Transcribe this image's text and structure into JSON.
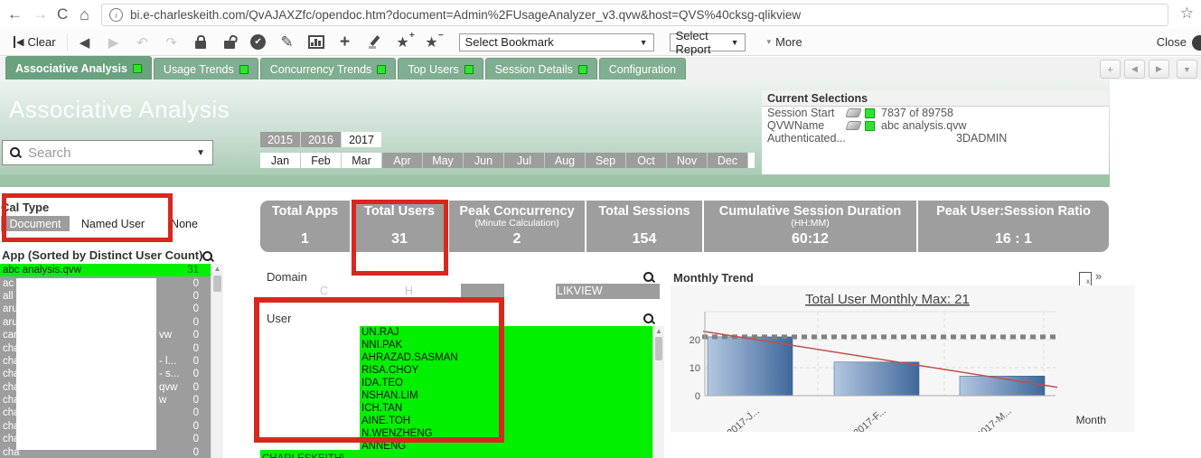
{
  "browser": {
    "url": "bi.e-charleskeith.com/QvAJAXZfc/opendoc.htm?document=Admin%2FUsageAnalyzer_v3.qvw&host=QVS%40cksg-qlikview"
  },
  "qv_toolbar": {
    "clear_label": "Clear",
    "bookmark_placeholder": "Select Bookmark",
    "report_label": "Select Report",
    "more_label": "More",
    "close_label": "Close"
  },
  "tab_bar": {
    "tabs": [
      {
        "label": "Associative Analysis",
        "indicator": true,
        "active": true
      },
      {
        "label": "Usage Trends",
        "indicator": true,
        "active": false
      },
      {
        "label": "Concurrency Trends",
        "indicator": true,
        "active": false
      },
      {
        "label": "Top Users",
        "indicator": true,
        "active": false
      },
      {
        "label": "Session Details",
        "indicator": true,
        "active": false
      },
      {
        "label": "Configuration",
        "indicator": false,
        "active": false
      }
    ]
  },
  "header": {
    "title": "Associative Analysis",
    "search_placeholder": "Search"
  },
  "current_selections": {
    "title": "Current Selections",
    "rows": [
      {
        "field": "Session Start",
        "value": "7837 of 89758",
        "icons": true,
        "far": false
      },
      {
        "field": "QVWName",
        "value": "abc analysis.qvw",
        "icons": true,
        "far": false
      },
      {
        "field": "Authenticated...",
        "value": "3DADMIN",
        "icons": false,
        "far": true
      }
    ]
  },
  "filters": {
    "years": [
      {
        "label": "2015",
        "selected": false
      },
      {
        "label": "2016",
        "selected": false
      },
      {
        "label": "2017",
        "selected": true
      }
    ],
    "months": [
      {
        "label": "Jan",
        "selected": true
      },
      {
        "label": "Feb",
        "selected": true
      },
      {
        "label": "Mar",
        "selected": true
      },
      {
        "label": "Apr",
        "selected": false
      },
      {
        "label": "May",
        "selected": false
      },
      {
        "label": "Jun",
        "selected": false
      },
      {
        "label": "Jul",
        "selected": false
      },
      {
        "label": "Aug",
        "selected": false
      },
      {
        "label": "Sep",
        "selected": false
      },
      {
        "label": "Oct",
        "selected": false
      },
      {
        "label": "Nov",
        "selected": false
      },
      {
        "label": "Dec",
        "selected": false
      }
    ]
  },
  "cal_type": {
    "label": "Cal Type",
    "options": [
      {
        "label": "Document",
        "selected": true
      },
      {
        "label": "Named User",
        "selected": false
      },
      {
        "label": "None",
        "selected": false
      }
    ]
  },
  "app_list": {
    "title": "App (Sorted by Distinct User Count)",
    "rows": [
      {
        "name": "abc analysis.qvw",
        "suffix": "",
        "count": "31",
        "selected": true
      },
      {
        "name": "ac",
        "suffix": "",
        "count": "0",
        "selected": false
      },
      {
        "name": "all",
        "suffix": "",
        "count": "0",
        "selected": false
      },
      {
        "name": "aru",
        "suffix": "",
        "count": "0",
        "selected": false
      },
      {
        "name": "aru",
        "suffix": "",
        "count": "0",
        "selected": false
      },
      {
        "name": "car",
        "suffix": "vw",
        "count": "0",
        "selected": false
      },
      {
        "name": "cha",
        "suffix": "",
        "count": "0",
        "selected": false
      },
      {
        "name": "cha",
        "suffix": "- l...",
        "count": "0",
        "selected": false
      },
      {
        "name": "cha",
        "suffix": "- s...",
        "count": "0",
        "selected": false
      },
      {
        "name": "cha",
        "suffix": "qvw",
        "count": "0",
        "selected": false
      },
      {
        "name": "cha",
        "suffix": "w",
        "count": "0",
        "selected": false
      },
      {
        "name": "cha",
        "suffix": "",
        "count": "0",
        "selected": false
      },
      {
        "name": "cha",
        "suffix": "",
        "count": "0",
        "selected": false
      },
      {
        "name": "cha",
        "suffix": "",
        "count": "0",
        "selected": false
      },
      {
        "name": "cha",
        "suffix": "",
        "count": "0",
        "selected": false
      },
      {
        "name": "cha",
        "suffix": "",
        "count": "0",
        "selected": false
      }
    ]
  },
  "kpis": [
    {
      "label": "Total Apps",
      "sublabel": "",
      "value": "1"
    },
    {
      "label": "Total Users",
      "sublabel": "",
      "value": "31"
    },
    {
      "label": "Peak Concurrency",
      "sublabel": "(Minute Calculation)",
      "value": "2"
    },
    {
      "label": "Total Sessions",
      "sublabel": "",
      "value": "154"
    },
    {
      "label": "Cumulative Session Duration",
      "sublabel": "(HH:MM)",
      "value": "60:12"
    },
    {
      "label": "Peak User:Session Ratio",
      "sublabel": "",
      "value": "16 : 1"
    }
  ],
  "domain": {
    "label": "Domain",
    "left_cell_fragments": [
      "C",
      "H"
    ],
    "right_cell_visible_text": "LIKVIEW"
  },
  "user_list": {
    "label": "User",
    "rows": [
      "UN.RAJ",
      "NNI.PAK",
      "AHRAZAD.SASMAN",
      "RISA.CHOY",
      "IDA.TEO",
      "NSHAN.LIM",
      "ICH.TAN",
      "AINE.TOH",
      "N.WENZHENG",
      "ANNENG"
    ],
    "partial_row": "CHARLESKEITH\\..."
  },
  "monthly_trend": {
    "panel_title": "Monthly Trend",
    "export_icon_label": "x",
    "more_icon_label": "»"
  },
  "chart_data": {
    "type": "bar",
    "title": "Total User Monthly Max: 21",
    "categories": [
      "2017-J...",
      "2017-F...",
      "2017-M..."
    ],
    "series": [
      {
        "name": "Total Users",
        "values": [
          21,
          12,
          7
        ]
      }
    ],
    "reference_line_y": 21,
    "trend_line": {
      "start_value": 23,
      "end_value": 3
    },
    "yticks": [
      0,
      10,
      20
    ],
    "ylim": [
      0,
      30
    ],
    "xlabel": "Month",
    "grid": true,
    "legend_position": "none"
  },
  "colors": {
    "selected_green": "#00f000",
    "indicator_green": "#2ee52e",
    "tab_green": "#7fae90",
    "tab_active_green": "#69a27d",
    "kpi_gray": "#9e9e9e",
    "annotation_red": "#d8281e",
    "trend_line_red": "#c0504d",
    "bar_blue_dark": "#3f689b",
    "bar_blue_light": "#b3c7e0"
  }
}
